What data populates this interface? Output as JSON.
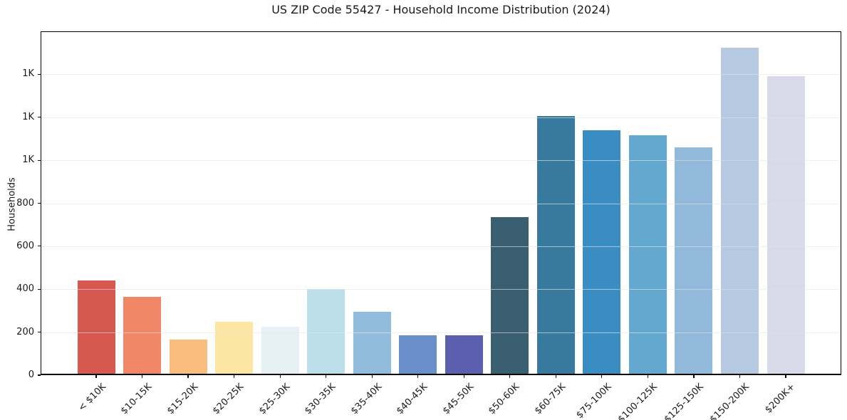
{
  "chart_data": {
    "type": "bar",
    "title": "US ZIP Code 55427 - Household Income Distribution (2024)",
    "xlabel": "",
    "ylabel": "Households",
    "categories": [
      "< $10K",
      "$10-15K",
      "$15-20K",
      "$20-25K",
      "$25-30K",
      "$30-35K",
      "$35-40K",
      "$40-45K",
      "$45-50K",
      "$50-60K",
      "$60-75K",
      "$75-100K",
      "$100-125K",
      "$125-150K",
      "$150-200K",
      "$200K+"
    ],
    "values": [
      440,
      365,
      165,
      250,
      225,
      400,
      295,
      185,
      185,
      735,
      1205,
      1140,
      1115,
      1060,
      1525,
      1390
    ],
    "bar_colors": [
      "#d6584f",
      "#f28767",
      "#fbbd7d",
      "#fde5a3",
      "#e7f1f4",
      "#bcdfea",
      "#92bcdb",
      "#6b90c9",
      "#5c5fae",
      "#3a5f70",
      "#38799e",
      "#3a8dc1",
      "#62a8cf",
      "#92b9da",
      "#b7c8e1",
      "#d8dae9"
    ],
    "ylim": [
      0,
      1600
    ],
    "ytick_values": [
      0,
      200,
      400,
      600,
      800,
      1000,
      1200,
      1400
    ],
    "ytick_labels": [
      "0",
      "200",
      "400",
      "600",
      "800",
      "1K",
      "1K",
      "1K"
    ],
    "grid": "horizontal-only",
    "legend_position": "none",
    "background_color": "#ffffff",
    "spine_color": "#000000",
    "grid_color": "#e5e5e5",
    "text_color": "#1a1a1a"
  }
}
